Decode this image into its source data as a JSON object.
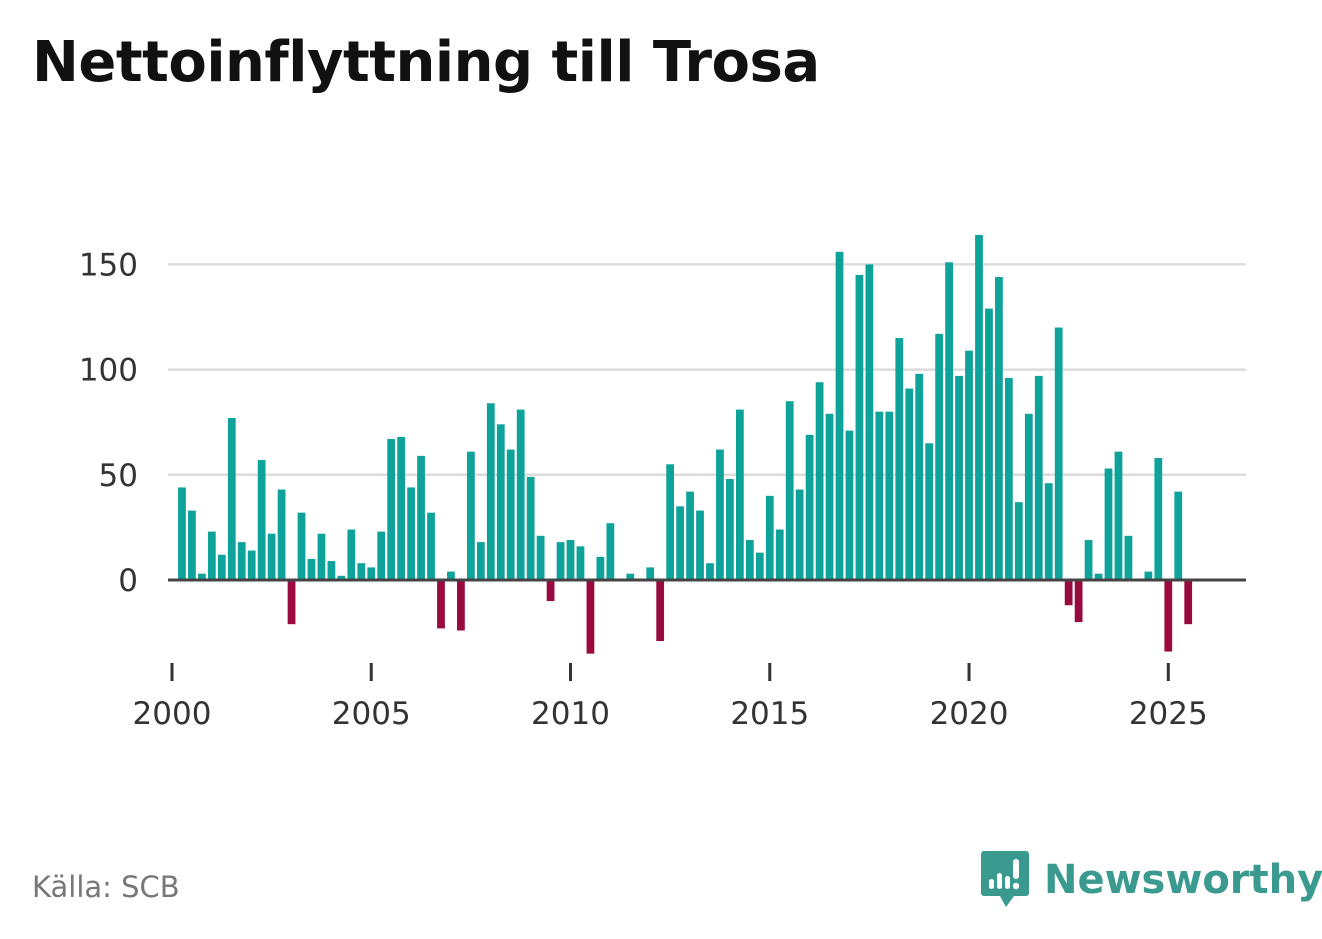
{
  "chart_data": {
    "type": "bar",
    "title": "Nettoinflyttning till Trosa",
    "xlabel": "",
    "ylabel": "",
    "ylim": [
      -35,
      165
    ],
    "yticks": [
      0,
      50,
      100,
      150
    ],
    "xticks": [
      2000,
      2005,
      2010,
      2015,
      2020,
      2025
    ],
    "xrange": [
      1999.9,
      2026.95
    ],
    "start": 2000.25,
    "step": 0.25,
    "positive_color": "#0ea39a",
    "negative_color": "#990a3f",
    "values": [
      44,
      33,
      3,
      23,
      12,
      77,
      18,
      14,
      57,
      22,
      43,
      -21,
      32,
      10,
      22,
      9,
      2,
      24,
      8,
      6,
      23,
      67,
      68,
      44,
      59,
      32,
      -23,
      4,
      -24,
      61,
      18,
      84,
      74,
      62,
      81,
      49,
      21,
      -10,
      18,
      19,
      16,
      -35,
      11,
      27,
      0,
      3,
      0,
      6,
      -29,
      55,
      35,
      42,
      33,
      8,
      62,
      48,
      81,
      19,
      13,
      40,
      24,
      85,
      43,
      69,
      94,
      79,
      156,
      71,
      145,
      150,
      80,
      80,
      115,
      91,
      98,
      65,
      117,
      151,
      97,
      109,
      164,
      129,
      144,
      96,
      37,
      79,
      97,
      46,
      120,
      -12,
      -20,
      19,
      3,
      53,
      61,
      21,
      0,
      4,
      58,
      -34,
      42,
      -21
    ]
  },
  "source": "Källa: SCB",
  "brand": {
    "name": "Newsworthy",
    "icon": "newsworthy-chart-icon"
  }
}
